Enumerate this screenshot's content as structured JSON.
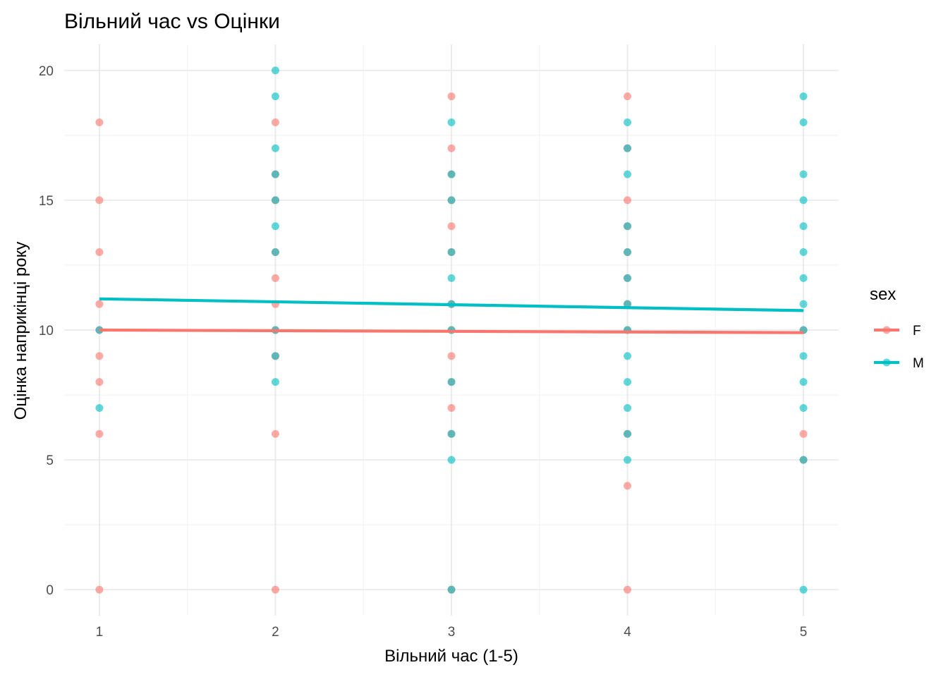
{
  "chart_data": {
    "type": "scatter",
    "title": "Вільний час vs Оцінки",
    "xlabel": "Вільний час (1-5)",
    "ylabel": "Оцінка наприкінці року",
    "xlim": [
      0.8,
      5.2
    ],
    "ylim": [
      -1,
      21
    ],
    "x_ticks": [
      1,
      2,
      3,
      4,
      5
    ],
    "y_ticks": [
      0,
      5,
      10,
      15,
      20
    ],
    "grid": true,
    "legend": {
      "title": "sex",
      "position": "right"
    },
    "series": [
      {
        "name": "F",
        "color": "#F8766D",
        "points": [
          [
            1,
            0
          ],
          [
            1,
            6
          ],
          [
            1,
            8
          ],
          [
            1,
            9
          ],
          [
            1,
            10
          ],
          [
            1,
            11
          ],
          [
            1,
            13
          ],
          [
            1,
            15
          ],
          [
            1,
            18
          ],
          [
            2,
            0
          ],
          [
            2,
            6
          ],
          [
            2,
            9
          ],
          [
            2,
            10
          ],
          [
            2,
            11
          ],
          [
            2,
            12
          ],
          [
            2,
            13
          ],
          [
            2,
            15
          ],
          [
            2,
            16
          ],
          [
            2,
            18
          ],
          [
            3,
            0
          ],
          [
            3,
            6
          ],
          [
            3,
            7
          ],
          [
            3,
            8
          ],
          [
            3,
            9
          ],
          [
            3,
            10
          ],
          [
            3,
            11
          ],
          [
            3,
            13
          ],
          [
            3,
            14
          ],
          [
            3,
            15
          ],
          [
            3,
            16
          ],
          [
            3,
            17
          ],
          [
            3,
            19
          ],
          [
            4,
            0
          ],
          [
            4,
            4
          ],
          [
            4,
            6
          ],
          [
            4,
            10
          ],
          [
            4,
            11
          ],
          [
            4,
            12
          ],
          [
            4,
            13
          ],
          [
            4,
            14
          ],
          [
            4,
            15
          ],
          [
            4,
            17
          ],
          [
            4,
            19
          ],
          [
            5,
            5
          ],
          [
            5,
            6
          ],
          [
            5,
            10
          ]
        ],
        "fit": [
          [
            1,
            10.0
          ],
          [
            5,
            9.9
          ]
        ]
      },
      {
        "name": "M",
        "color": "#00BFC4",
        "points": [
          [
            1,
            7
          ],
          [
            1,
            10
          ],
          [
            2,
            8
          ],
          [
            2,
            9
          ],
          [
            2,
            10
          ],
          [
            2,
            13
          ],
          [
            2,
            14
          ],
          [
            2,
            15
          ],
          [
            2,
            16
          ],
          [
            2,
            17
          ],
          [
            2,
            19
          ],
          [
            2,
            20
          ],
          [
            3,
            0
          ],
          [
            3,
            5
          ],
          [
            3,
            6
          ],
          [
            3,
            8
          ],
          [
            3,
            10
          ],
          [
            3,
            11
          ],
          [
            3,
            12
          ],
          [
            3,
            13
          ],
          [
            3,
            15
          ],
          [
            3,
            16
          ],
          [
            3,
            18
          ],
          [
            4,
            5
          ],
          [
            4,
            6
          ],
          [
            4,
            7
          ],
          [
            4,
            8
          ],
          [
            4,
            9
          ],
          [
            4,
            10
          ],
          [
            4,
            11
          ],
          [
            4,
            12
          ],
          [
            4,
            13
          ],
          [
            4,
            14
          ],
          [
            4,
            16
          ],
          [
            4,
            17
          ],
          [
            4,
            18
          ],
          [
            5,
            0
          ],
          [
            5,
            5
          ],
          [
            5,
            7
          ],
          [
            5,
            8
          ],
          [
            5,
            9
          ],
          [
            5,
            10
          ],
          [
            5,
            11
          ],
          [
            5,
            12
          ],
          [
            5,
            13
          ],
          [
            5,
            14
          ],
          [
            5,
            15
          ],
          [
            5,
            16
          ],
          [
            5,
            18
          ],
          [
            5,
            19
          ]
        ],
        "fit": [
          [
            1,
            11.2
          ],
          [
            5,
            10.75
          ]
        ]
      }
    ]
  }
}
